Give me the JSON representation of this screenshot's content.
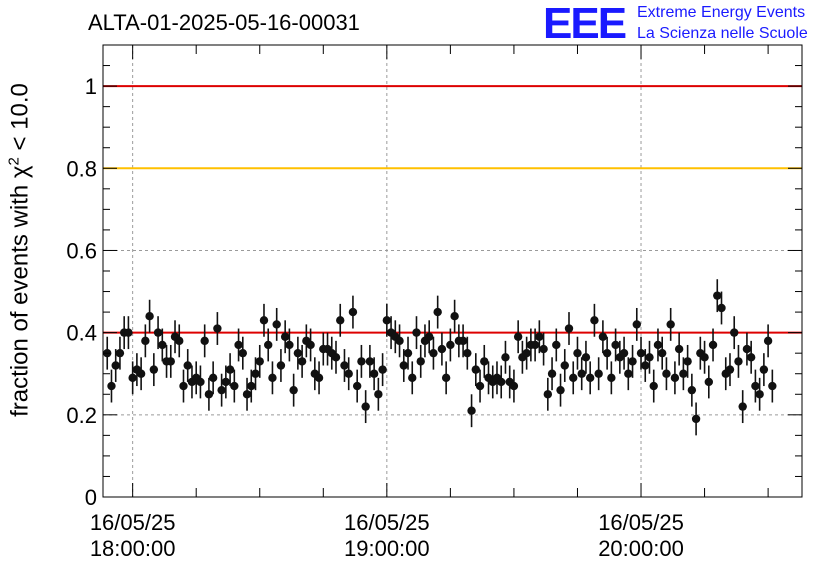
{
  "title": "ALTA-01-2025-05-16-00031",
  "logo": {
    "mark": "EEE",
    "line1": "Extreme Energy Events",
    "line2": "La Scienza nelle Scuole"
  },
  "chart_data": {
    "type": "scatter",
    "title": "ALTA-01-2025-05-16-00031",
    "ylabel": "fraction of events with χ² < 10.0",
    "ylabel_main": "fraction of events with",
    "ylabel_chi": "χ",
    "ylabel_sup": "2",
    "ylabel_tail": " < 10.0",
    "ylim": [
      0,
      1.1
    ],
    "yticks": [
      0,
      0.2,
      0.4,
      0.6,
      0.8,
      1
    ],
    "ytick_labels": [
      "0",
      "0.2",
      "0.4",
      "0.6",
      "0.8",
      "1"
    ],
    "xlim": [
      "16/05/25 17:53",
      "16/05/25 20:38"
    ],
    "xticks": [
      {
        "time": "18:00",
        "date_label": "16/05/25",
        "time_label": "18:00:00"
      },
      {
        "time": "19:00",
        "date_label": "16/05/25",
        "time_label": "19:00:00"
      },
      {
        "time": "20:00",
        "date_label": "16/05/25",
        "time_label": "20:00:00"
      }
    ],
    "grid": true,
    "reference_lines": [
      {
        "y": 1.0,
        "color": "#dd0000"
      },
      {
        "y": 0.8,
        "color": "#ffc000"
      },
      {
        "y": 0.4,
        "color": "#dd0000"
      }
    ],
    "bin_minutes": 1,
    "series": [
      {
        "marker_color": "#111111",
        "error": 0.04,
        "x_start": "17:54",
        "y": [
          0.35,
          0.27,
          0.32,
          0.35,
          0.4,
          0.4,
          0.29,
          0.31,
          0.3,
          0.38,
          0.44,
          0.31,
          0.4,
          0.37,
          0.33,
          0.33,
          0.39,
          0.38,
          0.27,
          0.32,
          0.28,
          0.29,
          0.28,
          0.38,
          0.25,
          0.29,
          0.41,
          0.26,
          0.28,
          0.31,
          0.27,
          0.37,
          0.35,
          0.25,
          0.27,
          0.3,
          0.33,
          0.43,
          0.37,
          0.29,
          0.42,
          0.32,
          0.39,
          0.37,
          0.26,
          0.35,
          0.33,
          0.38,
          0.37,
          0.3,
          0.29,
          0.36,
          0.36,
          0.35,
          0.34,
          0.43,
          0.32,
          0.3,
          0.45,
          0.27,
          0.33,
          0.22,
          0.33,
          0.3,
          0.25,
          0.31,
          0.43,
          0.4,
          0.39,
          0.38,
          0.32,
          0.35,
          0.29,
          0.4,
          0.33,
          0.38,
          0.39,
          0.35,
          0.45,
          0.36,
          0.29,
          0.37,
          0.44,
          0.38,
          0.38,
          0.35,
          0.21,
          0.31,
          0.27,
          0.33,
          0.29,
          0.28,
          0.29,
          0.28,
          0.34,
          0.28,
          0.27,
          0.39,
          0.34,
          0.35,
          0.37,
          0.37,
          0.39,
          0.36,
          0.25,
          0.3,
          0.37,
          0.26,
          0.32,
          0.41,
          0.29,
          0.35,
          0.3,
          0.34,
          0.29,
          0.43,
          0.3,
          0.39,
          0.35,
          0.29,
          0.37,
          0.34,
          0.35,
          0.3,
          0.33,
          0.42,
          0.35,
          0.32,
          0.34,
          0.27,
          0.37,
          0.35,
          0.3,
          0.42,
          0.29,
          0.36,
          0.3,
          0.33,
          0.26,
          0.19,
          0.35,
          0.34,
          0.28,
          0.37,
          0.49,
          0.46,
          0.3,
          0.31,
          0.4,
          0.33,
          0.22,
          0.36,
          0.34,
          0.27,
          0.25,
          0.31,
          0.38,
          0.27
        ]
      }
    ]
  }
}
